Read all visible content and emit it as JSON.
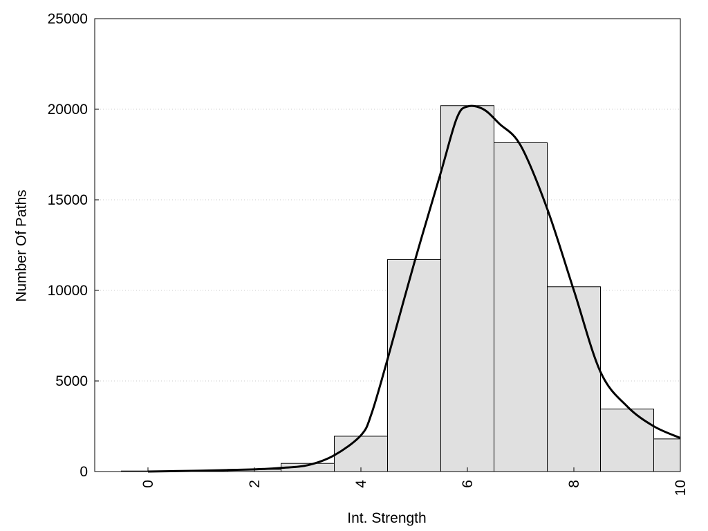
{
  "chart_data": {
    "type": "bar",
    "title": "",
    "xlabel": "Int. Strength",
    "ylabel": "Number Of Paths",
    "xlim": [
      -1,
      10
    ],
    "ylim": [
      0,
      25000
    ],
    "x_ticks": [
      0,
      2,
      4,
      6,
      8,
      10
    ],
    "y_ticks": [
      0,
      5000,
      10000,
      15000,
      20000,
      25000
    ],
    "grid": "horizontal dotted",
    "bins": {
      "centers": [
        0,
        1,
        2,
        3,
        4,
        5,
        6,
        7,
        8,
        9,
        10
      ],
      "values": [
        30,
        60,
        120,
        450,
        1950,
        11700,
        20200,
        18150,
        10200,
        3450,
        1800
      ]
    },
    "density_curve": {
      "x": [
        0,
        1,
        2,
        2.5,
        3,
        3.5,
        4,
        4.2,
        4.5,
        5,
        5.5,
        5.8,
        6,
        6.3,
        6.6,
        7,
        7.5,
        8,
        8.5,
        9,
        9.5,
        10
      ],
      "y": [
        0,
        50,
        120,
        200,
        350,
        900,
        2000,
        3200,
        6200,
        11500,
        16500,
        19500,
        20150,
        20000,
        19200,
        18000,
        14500,
        10000,
        5500,
        3600,
        2500,
        1850
      ]
    },
    "colors": {
      "bar_fill": "#e0e0e0",
      "bar_stroke": "#000000",
      "curve": "#000000",
      "grid": "#bbbbbb"
    }
  }
}
